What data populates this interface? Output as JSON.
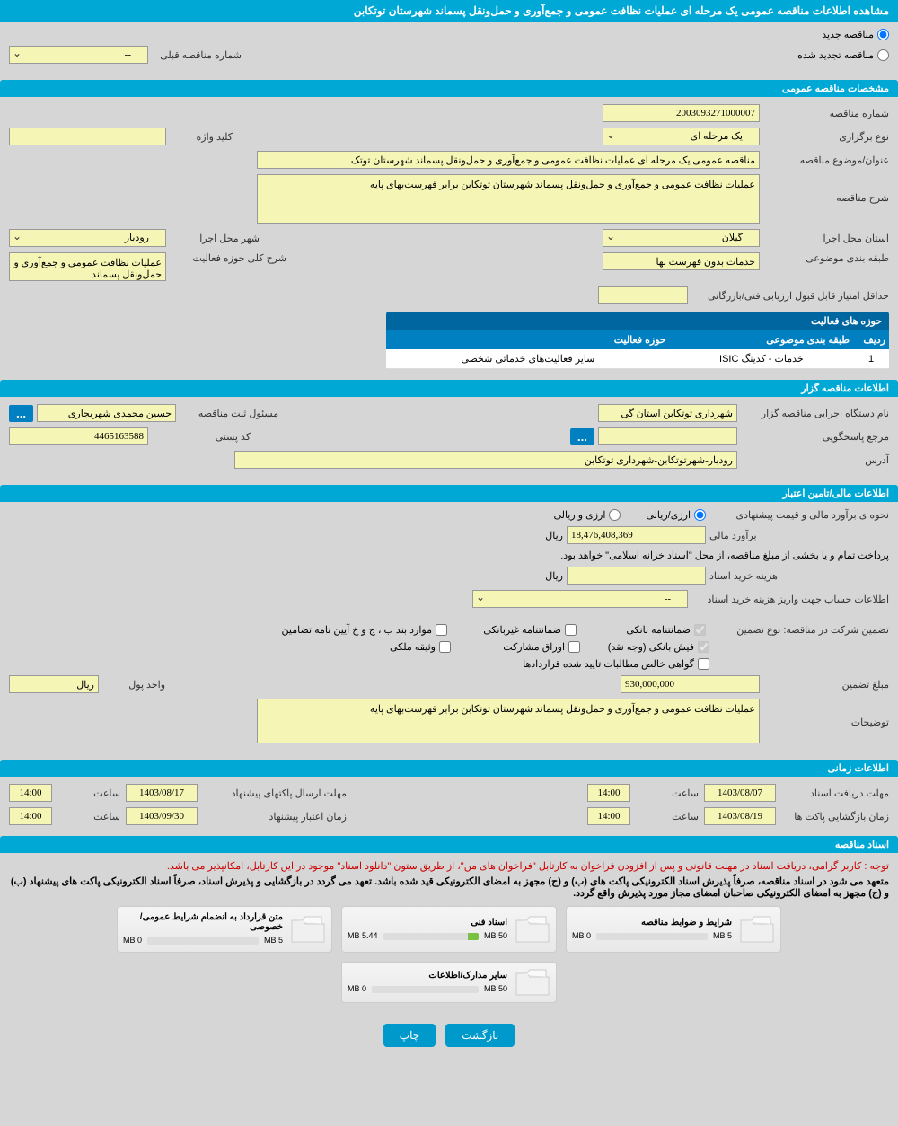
{
  "main_title": "مشاهده اطلاعات مناقصه عمومی یک مرحله ای عملیات نظافت عمومی و جمع‌آوری و حمل‌ونقل پسماند شهرستان توتکابن",
  "top_radios": {
    "new": "مناقصه جدید",
    "renewed": "مناقصه تجدید شده"
  },
  "prev_number_label": "شماره مناقصه قبلی",
  "sections": {
    "general_spec": "مشخصات مناقصه عمومی",
    "organizer_info": "اطلاعات مناقصه گزار",
    "financial_info": "اطلاعات مالی/تامین اعتبار",
    "time_info": "اطلاعات زمانی",
    "tender_docs": "اسناد مناقصه"
  },
  "general": {
    "tender_number_label": "شماره مناقصه",
    "tender_number": "2003093271000007",
    "holding_type_label": "نوع برگزاری",
    "holding_type": "یک مرحله ای",
    "keyword_label": "کلید واژه",
    "keyword": "",
    "subject_label": "عنوان/موضوع مناقصه",
    "subject": "مناقصه عمومی یک مرحله ای عملیات نظافت عمومی و جمع‌آوری و حمل‌ونقل پسماند شهرستان توتک",
    "description_label": "شرح مناقصه",
    "description": "عملیات نظافت عمومی و جمع‌آوری و حمل‌ونقل پسماند شهرستان توتکابن برابر فهرست‌بهای پایه",
    "province_label": "استان محل اجرا",
    "province": "گیلان",
    "city_label": "شهر محل اجرا",
    "city": "رودبار",
    "category_label": "طبقه بندی موضوعی",
    "category": "خدمات بدون فهرست بها",
    "activity_desc_label": "شرح کلی حوزه فعالیت",
    "activity_desc": "عملیات نظافت عمومی و جمع‌آوری و حمل‌ونقل پسماند",
    "min_score_label": "حداقل امتیاز قابل قبول ارزیابی فنی/بازرگانی"
  },
  "activities_table": {
    "title": "حوزه های فعالیت",
    "col_row": "ردیف",
    "col_category": "طبقه بندی موضوعی",
    "col_activity": "حوزه فعالیت",
    "rows": [
      {
        "num": "1",
        "category": "خدمات - کدینگ ISIC",
        "activity": "سایر فعالیت‌های خدماتی شخصی"
      }
    ]
  },
  "organizer": {
    "org_name_label": "نام دستگاه اجرایی مناقصه گزار",
    "org_name": "شهرداری توتکابن استان گی",
    "responsible_label": "مسئول ثبت مناقصه",
    "responsible": "حسین محمدی شهربجاری",
    "more_btn": "...",
    "response_ref_label": "مرجع پاسخگویی",
    "response_ref": "",
    "postal_code_label": "کد پستی",
    "postal_code": "4465163588",
    "address_label": "آدرس",
    "address": "رودبار-شهرتوتکابن-شهرداری توتکابن"
  },
  "financial": {
    "estimate_method_label": "نحوه ی برآورد مالی و قیمت پیشنهادی",
    "radio_currency": "ارزی/ریالی",
    "radio_both": "ارزی و ریالی",
    "estimate_label": "برآورد مالی",
    "estimate_value": "18,476,408,369",
    "currency_unit": "ریال",
    "payment_note": "پرداخت تمام و یا بخشی از مبلغ مناقصه، از محل \"اسناد خزانه اسلامی\" خواهد بود.",
    "doc_purchase_label": "هزینه خرید اسناد",
    "doc_purchase_value": "",
    "account_info_label": "اطلاعات حساب جهت واریز هزینه خرید اسناد",
    "account_select": "--",
    "guarantee_type_label": "تضمین شرکت در مناقصه:   نوع تضمین",
    "guarantees": {
      "bank_guarantee": "ضمانتنامه بانکی",
      "nonbank_guarantee": "ضمانتنامه غیربانکی",
      "bylaw_items": "موارد بند ب ، ج و خ آیین نامه تضامین",
      "bank_receipt": "فیش بانکی (وجه نقد)",
      "participation_bonds": "اوراق مشارکت",
      "property_collateral": "وثیقه ملکی",
      "net_receivables": "گواهی خالص مطالبات تایید شده قراردادها"
    },
    "guarantee_amount_label": "مبلغ تضمین",
    "guarantee_amount": "930,000,000",
    "unit_label": "واحد پول",
    "unit_value": "ریال",
    "notes_label": "توضیحات",
    "notes": "عملیات نظافت عمومی و جمع‌آوری و حمل‌ونقل پسماند شهرستان توتکابن برابر فهرست‌بهای پایه"
  },
  "timing": {
    "doc_receive_label": "مهلت دریافت اسناد",
    "doc_receive_date": "1403/08/07",
    "time_label": "ساعت",
    "doc_receive_time": "14:00",
    "proposal_send_label": "مهلت ارسال پاکتهای پیشنهاد",
    "proposal_send_date": "1403/08/17",
    "proposal_send_time": "14:00",
    "envelope_open_label": "زمان بازگشایی پاکت ها",
    "envelope_open_date": "1403/08/19",
    "envelope_open_time": "14:00",
    "proposal_validity_label": "زمان اعتبار پیشنهاد",
    "proposal_validity_date": "1403/09/30",
    "proposal_validity_time": "14:00"
  },
  "docs": {
    "red_note": "توجه : کاربر گرامی، دریافت اسناد در مهلت قانونی و پس از افزودن فراخوان به کارتابل \"فراخوان های من\"، از طریق ستون \"دانلود اسناد\" موجود در این کارتابل، امکانپذیر می باشد.",
    "bold_note": "متعهد می شود در اسناد مناقصه، صرفاً پذیرش اسناد الکترونیکی پاکت های (ب) و (ج) مجهز به امضای الکترونیکی قید شده باشد. تعهد می گردد در بازگشایی و پذیرش اسناد، صرفاً اسناد الکترونیکی پاکت های پیشنهاد (ب) و (ج) مجهز به امضای الکترونیکی صاحبان امضای مجاز مورد پذیرش واقع گردد.",
    "cards": [
      {
        "title": "شرایط و ضوابط مناقصه",
        "used": "0 MB",
        "total": "5 MB",
        "percent": 0
      },
      {
        "title": "اسناد فنی",
        "used": "5.44 MB",
        "total": "50 MB",
        "percent": 11
      },
      {
        "title": "متن قرارداد به انضمام شرایط عمومی/خصوصی",
        "used": "0 MB",
        "total": "5 MB",
        "percent": 0
      },
      {
        "title": "سایر مدارک/اطلاعات",
        "used": "0 MB",
        "total": "50 MB",
        "percent": 0
      }
    ]
  },
  "footer": {
    "back": "بازگشت",
    "print": "چاپ"
  },
  "colors": {
    "header_bg": "#00a8d6",
    "table_header_bg": "#0080c0",
    "table_title_bg": "#0066a0",
    "input_bg": "#f5f5b5",
    "body_bg": "#d6d6d6",
    "progress_fill": "#7ac143",
    "red": "#c00"
  }
}
